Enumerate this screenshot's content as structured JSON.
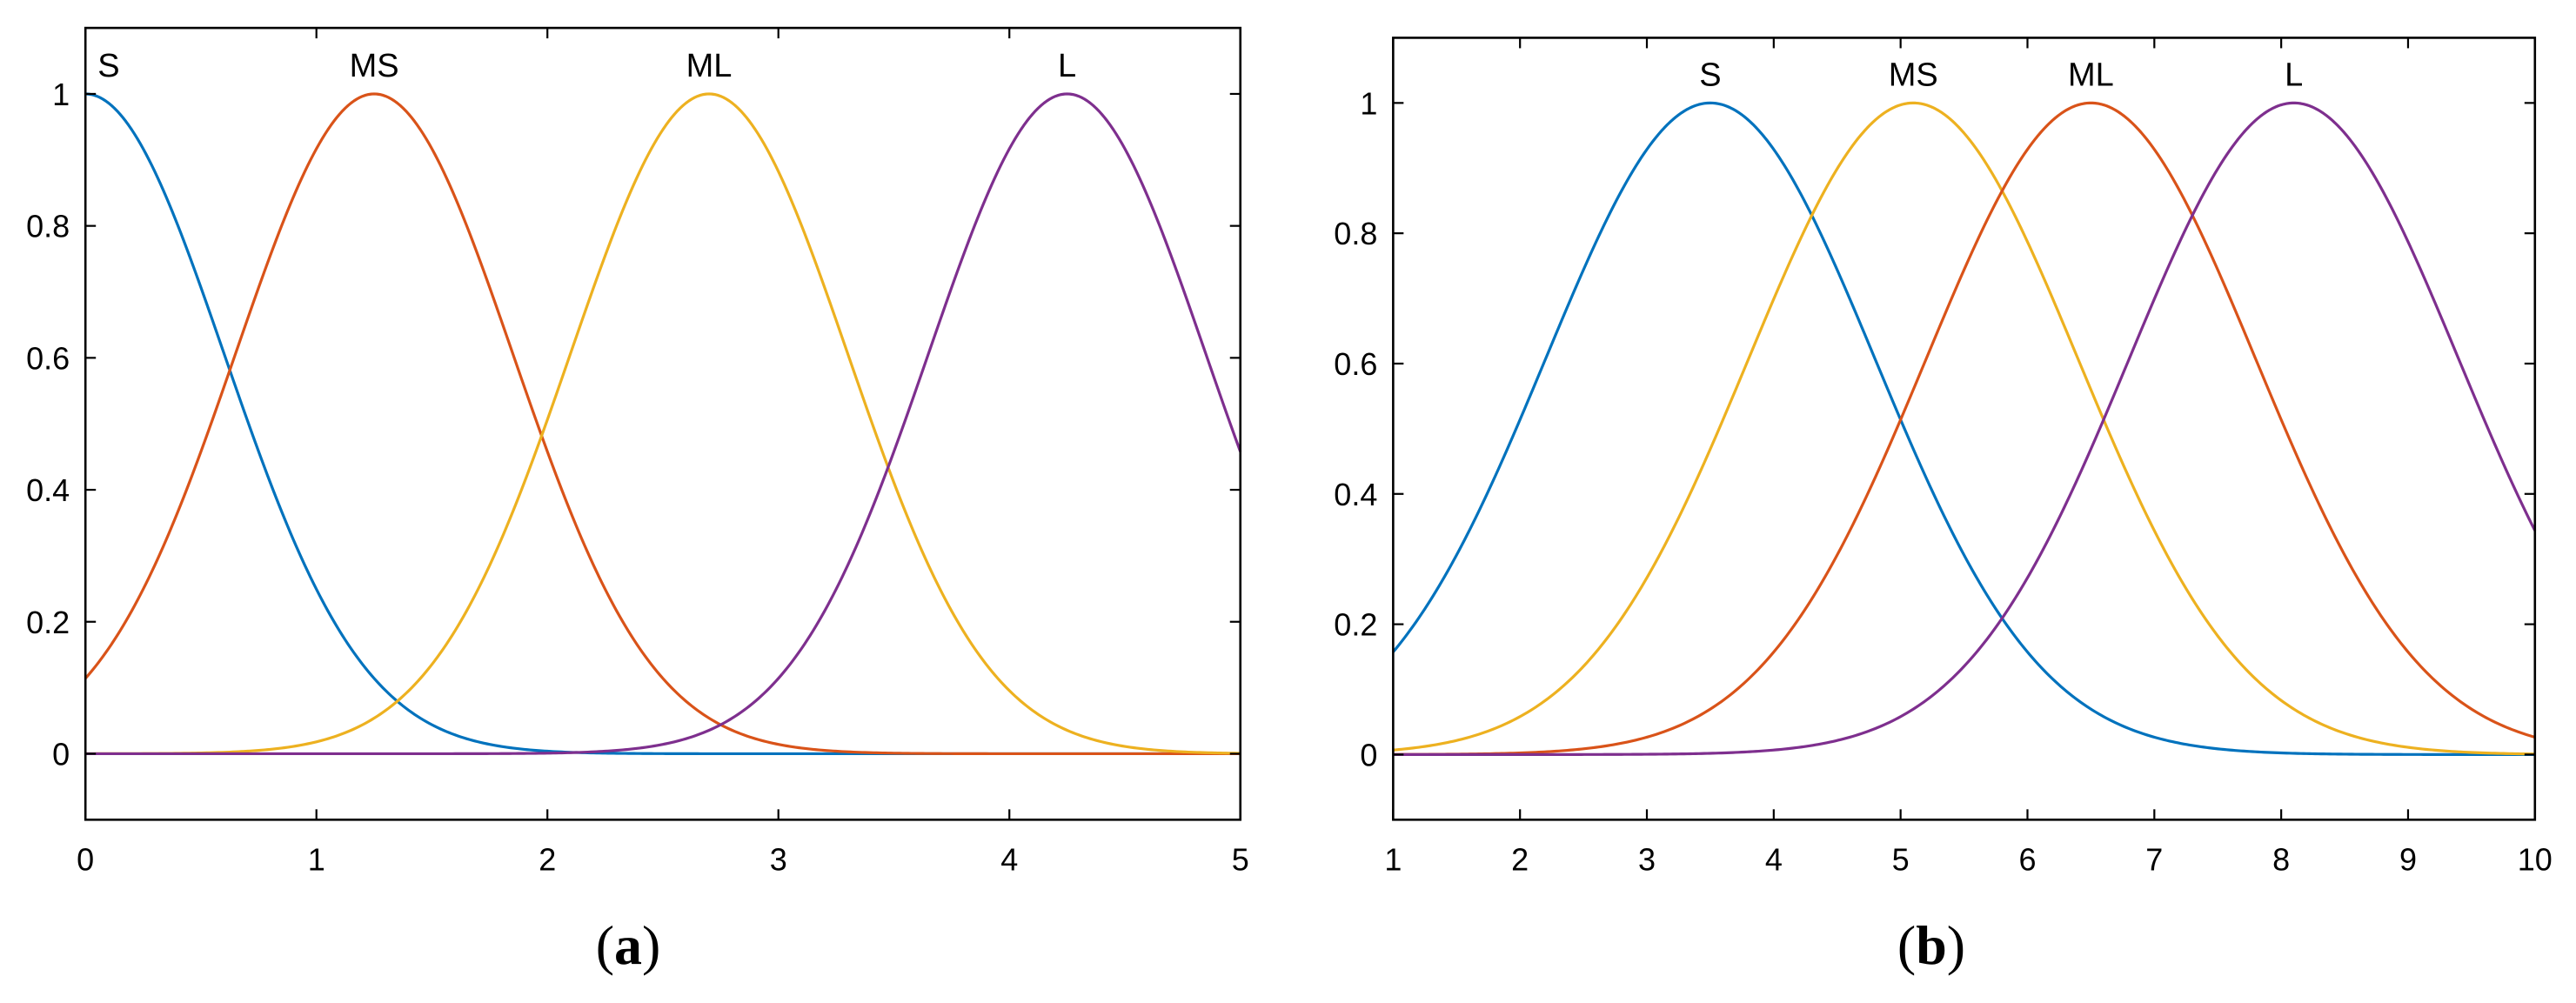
{
  "chart_data": [
    {
      "type": "line",
      "panel_label": "a",
      "title": "",
      "xlabel": "",
      "ylabel": "",
      "xlim": [
        0,
        5
      ],
      "ylim": [
        -0.1,
        1.1
      ],
      "xticks": [
        0,
        1,
        2,
        3,
        4,
        5
      ],
      "yticks": [
        0,
        0.2,
        0.4,
        0.6,
        0.8,
        1
      ],
      "grid": false,
      "legend": "none",
      "series": [
        {
          "name": "S",
          "color": "#0072BD",
          "shape": "gaussian",
          "center": 0.0,
          "sigma": 0.6
        },
        {
          "name": "MS",
          "color": "#D95319",
          "shape": "gaussian",
          "center": 1.25,
          "sigma": 0.6
        },
        {
          "name": "ML",
          "color": "#EDB120",
          "shape": "gaussian",
          "center": 2.7,
          "sigma": 0.6
        },
        {
          "name": "L",
          "color": "#7E2F8E",
          "shape": "gaussian",
          "center": 4.25,
          "sigma": 0.6
        }
      ]
    },
    {
      "type": "line",
      "panel_label": "b",
      "title": "",
      "xlabel": "",
      "ylabel": "",
      "xlim": [
        1,
        10
      ],
      "ylim": [
        -0.1,
        1.1
      ],
      "xticks": [
        1,
        2,
        3,
        4,
        5,
        6,
        7,
        8,
        9,
        10
      ],
      "yticks": [
        0,
        0.2,
        0.4,
        0.6,
        0.8,
        1
      ],
      "grid": false,
      "legend": "none",
      "series": [
        {
          "name": "S",
          "color": "#0072BD",
          "shape": "gaussian",
          "center": 3.5,
          "sigma": 1.3
        },
        {
          "name": "MS",
          "color": "#EDB120",
          "shape": "gaussian",
          "center": 5.1,
          "sigma": 1.3
        },
        {
          "name": "ML",
          "color": "#D95319",
          "shape": "gaussian",
          "center": 6.5,
          "sigma": 1.3
        },
        {
          "name": "L",
          "color": "#7E2F8E",
          "shape": "gaussian",
          "center": 8.1,
          "sigma": 1.3
        }
      ]
    }
  ],
  "captions": [
    {
      "open": "(",
      "letter": "a",
      "close": ")"
    },
    {
      "open": "(",
      "letter": "b",
      "close": ")"
    }
  ]
}
